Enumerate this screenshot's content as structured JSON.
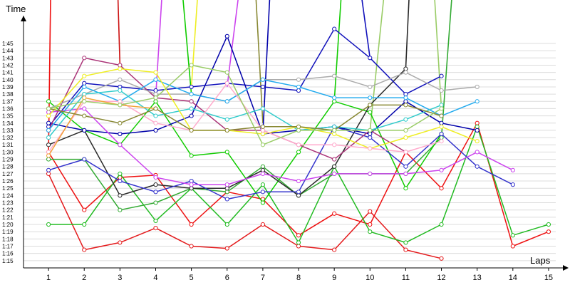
{
  "chart_data": {
    "type": "line",
    "xlabel": "Laps",
    "ylabel": "Time",
    "x_ticks": [
      "1",
      "2",
      "3",
      "4",
      "5",
      "6",
      "7",
      "8",
      "9",
      "10",
      "11",
      "12",
      "13",
      "14",
      "15"
    ],
    "y_ticks": [
      "1:15",
      "1:16",
      "1:17",
      "1:18",
      "1:19",
      "1:20",
      "1:21",
      "1:22",
      "1:23",
      "1:24",
      "1:25",
      "1:26",
      "1:27",
      "1:28",
      "1:29",
      "1:30",
      "1:31",
      "1:32",
      "1:33",
      "1:34",
      "1:35",
      "1:36",
      "1:37",
      "1:38",
      "1:39",
      "1:40",
      "1:41",
      "1:42",
      "1:43",
      "1:44",
      "1:45"
    ],
    "ylim": [
      "1:14",
      "1:51"
    ],
    "xlim": [
      0.3,
      15.4
    ],
    "grid": true,
    "series": [
      {
        "color": "#e41a1c",
        "x": [
          1,
          2,
          3,
          4,
          5,
          6,
          7,
          8,
          9,
          10,
          11,
          12
        ],
        "y": [
          "1:27",
          "1:16.5",
          "1:17.5",
          "1:19.5",
          "1:17",
          "1:16.7",
          "1:20",
          "1:17",
          "1:16.5",
          "1:21.8",
          "1:16.5",
          "1:15.3"
        ]
      },
      {
        "color": "#ee1111",
        "x": [
          1,
          2,
          3,
          4,
          5,
          6,
          7,
          8,
          9,
          10,
          11,
          12,
          13,
          14,
          15
        ],
        "y": [
          "1:30",
          "1:22",
          "1:26.5",
          "1:26.8",
          "1:20",
          "1:24.5",
          "1:23.5",
          "1:18.5",
          "1:21.5",
          "1:20",
          "1:30",
          "1:25",
          "1:34",
          "1:17",
          "1:19"
        ]
      },
      {
        "color": "#22bb22",
        "x": [
          1,
          2,
          3,
          4,
          5,
          6,
          7,
          8,
          9,
          10,
          11,
          12,
          13,
          14,
          15
        ],
        "y": [
          "1:20",
          "1:20",
          "1:27",
          "1:20.5",
          "1:25",
          "1:20",
          "1:25.5",
          "1:17.5",
          "1:28",
          "1:19",
          "1:17.5",
          "1:20",
          "1:33.5",
          "1:18.5",
          "1:20"
        ]
      },
      {
        "color": "#33aa33",
        "x": [
          1,
          2,
          3,
          4,
          5,
          6,
          7,
          8,
          9,
          10,
          11,
          12
        ],
        "y": [
          "1:29",
          "1:29",
          "1:22",
          "1:23",
          "1:25",
          "1:24.5",
          "1:28",
          "1:24",
          "1:27",
          "1:27",
          "1:27",
          "1:32"
        ]
      },
      {
        "color": "#11cc00",
        "x": [
          1,
          2,
          3,
          4,
          5,
          6,
          7,
          8,
          9,
          10,
          11,
          12
        ],
        "y": [
          "1:37",
          "1:33",
          "1:31",
          "1:37",
          "1:29.5",
          "1:30",
          "1:23",
          "1:30",
          "1:37",
          "1:35.5",
          "1:25",
          "1:32.5"
        ]
      },
      {
        "color": "#2a2a2a",
        "x": [
          1,
          2,
          3,
          4,
          5,
          6,
          7,
          8,
          9,
          10,
          11
        ],
        "y": [
          "1:31",
          "1:33",
          "1:24",
          "1:25.5",
          "1:25",
          "1:25",
          "1:27.5",
          "1:24",
          "1:28",
          "1:36.5",
          "1:41.5"
        ]
      },
      {
        "color": "#3333cc",
        "x": [
          1,
          2,
          3,
          4,
          5,
          6,
          7,
          8,
          9,
          10,
          11,
          12,
          13,
          14
        ],
        "y": [
          "1:27.5",
          "1:29",
          "1:26",
          "1:24.5",
          "1:26",
          "1:23.5",
          "1:24.5",
          "1:24.5",
          "1:33.5",
          "1:32",
          "1:28",
          "1:32.5",
          "1:28",
          "1:25.5"
        ]
      },
      {
        "color": "#1111bb",
        "x": [
          1,
          2,
          3,
          4,
          5,
          6,
          7,
          8,
          9,
          10,
          11,
          12
        ],
        "y": [
          "1:33.5",
          "1:39.5",
          "1:39",
          "1:38.5",
          "1:39",
          "1:39.5",
          "1:39",
          "1:38.5",
          "1:47",
          "1:43",
          "1:38",
          "1:40.5"
        ]
      },
      {
        "color": "#0000aa",
        "x": [
          1,
          2,
          3,
          4,
          5,
          6,
          7,
          8,
          9,
          10,
          11,
          12,
          13
        ],
        "y": [
          "1:34",
          "1:33",
          "1:32.5",
          "1:33",
          "1:35",
          "1:46",
          "1:32.5",
          "1:33",
          "1:33.5",
          "1:32.5",
          "1:37",
          "1:34",
          "1:33"
        ]
      },
      {
        "color": "#cc44ee",
        "x": [
          1,
          2,
          3,
          4,
          5,
          6,
          7,
          8,
          9,
          10,
          11,
          12,
          13,
          14
        ],
        "y": [
          "1:35.5",
          "1:36",
          "1:31",
          "1:26.5",
          "1:25.5",
          "1:25.5",
          "1:27",
          "1:26",
          "1:27",
          "1:27",
          "1:27",
          "1:27.5",
          "1:30",
          "1:27.5"
        ]
      },
      {
        "color": "#aa3377",
        "x": [
          1,
          2,
          3,
          4,
          5,
          6,
          7,
          8,
          9,
          10,
          11
        ],
        "y": [
          "1:33",
          "1:43",
          "1:42",
          "1:37.5",
          "1:37",
          "1:33",
          "1:33",
          "1:31",
          "1:29",
          "1:33",
          "1:30"
        ]
      },
      {
        "color": "#aaaaaa",
        "x": [
          1,
          2,
          3,
          4,
          5,
          6,
          7,
          8,
          9,
          10,
          11,
          12,
          13
        ],
        "y": [
          "1:36",
          "1:38",
          "1:40",
          "1:38",
          "1:38",
          "1:37",
          "1:40",
          "1:40",
          "1:40.5",
          "1:39",
          "1:41",
          "1:38.5",
          "1:39"
        ]
      },
      {
        "color": "#22aaee",
        "x": [
          1,
          2,
          3,
          4,
          5,
          6,
          7,
          8,
          9,
          10,
          11,
          12,
          13
        ],
        "y": [
          "1:33",
          "1:39",
          "1:37",
          "1:40",
          "1:38",
          "1:37",
          "1:40",
          "1:39",
          "1:37.5",
          "1:37.5",
          "1:37.5",
          "1:35",
          "1:37"
        ]
      },
      {
        "color": "#33cccc",
        "x": [
          1,
          2,
          3,
          4,
          5,
          6,
          7,
          8,
          9,
          10,
          11,
          12
        ],
        "y": [
          "1:32",
          "1:38",
          "1:38.5",
          "1:35",
          "1:36",
          "1:34.5",
          "1:36",
          "1:33",
          "1:33.5",
          "1:33",
          "1:34.5",
          "1:36.5"
        ]
      },
      {
        "color": "#eeee22",
        "x": [
          1,
          2,
          3,
          4,
          5,
          6,
          7,
          8,
          9,
          10,
          11,
          12,
          13
        ],
        "y": [
          "1:35",
          "1:40.5",
          "1:41.5",
          "1:41",
          "1:33",
          "1:33",
          "1:32.5",
          "1:33.5",
          "1:32.5",
          "1:30.5",
          "1:32",
          "1:33.5",
          "1:31.5"
        ]
      },
      {
        "color": "#ffaacc",
        "x": [
          1,
          2,
          3,
          4,
          5,
          6,
          7,
          8,
          9,
          10,
          11,
          12
        ],
        "y": [
          "1:30",
          "1:37",
          "1:37",
          "1:34",
          "1:33",
          "1:39.5",
          "1:33",
          "1:31",
          "1:31",
          "1:30.5",
          "1:30",
          "1:31.5"
        ]
      },
      {
        "color": "#f2a43a",
        "x": [
          1,
          2,
          3,
          4
        ],
        "y": [
          "1:29.5",
          "1:37.5",
          "1:36.5",
          "1:36"
        ]
      },
      {
        "color": "#888833",
        "x": [
          1,
          2,
          3,
          4,
          5,
          6,
          7,
          8,
          9,
          10,
          11,
          12
        ],
        "y": [
          "1:36",
          "1:35",
          "1:34",
          "1:36",
          "1:33",
          "1:33",
          "1:33.5",
          "1:33.5",
          "1:33",
          "1:36.5",
          "1:36.5",
          "1:35"
        ]
      },
      {
        "color": "#99cc66",
        "x": [
          1,
          2,
          3,
          4,
          5,
          6,
          7,
          8,
          9,
          10,
          11,
          12
        ],
        "y": [
          "1:36",
          "1:37",
          "1:36.5",
          "1:37.5",
          "1:42",
          "1:41",
          "1:31",
          "1:33",
          "1:33",
          "1:33",
          "1:33",
          "1:36"
        ]
      }
    ],
    "offscreen_spikes": [
      {
        "color": "#ee1111",
        "from": [
          "1",
          "1:30"
        ],
        "to_x": 1.06
      },
      {
        "color": "#cc1111",
        "from": [
          "3",
          "1:42"
        ],
        "to_x": 2.94
      },
      {
        "color": "#cc44ee",
        "from": [
          "4",
          "1:37.5"
        ],
        "to_x": 4.18
      },
      {
        "color": "#11cc00",
        "from": [
          "5",
          "1:38"
        ],
        "to_x": 4.75
      },
      {
        "color": "#eeee22",
        "from": [
          "5",
          "1:39"
        ],
        "to_x": 5.18
      },
      {
        "color": "#cc44ee",
        "from": [
          "6",
          "1:39"
        ],
        "to_x": 6.33
      },
      {
        "color": "#888833",
        "from": [
          "7",
          "1:34"
        ],
        "to_x": 6.8
      },
      {
        "color": "#0000aa",
        "from": [
          "7",
          "1:32.5"
        ],
        "to_x": 7.2
      },
      {
        "color": "#11cc00",
        "from": [
          "9",
          "1:37"
        ],
        "to_x": 9.2
      },
      {
        "color": "#1111bb",
        "from": [
          "10",
          "1:43"
        ],
        "to_x": 9.75
      },
      {
        "color": "#99cc66",
        "from": [
          "10",
          "1:33"
        ],
        "to_x": 10.4
      },
      {
        "color": "#2a2a2a",
        "from": [
          "11",
          "1:41.5"
        ],
        "to_x": 11.1
      },
      {
        "color": "#99cc66",
        "from": [
          "12",
          "1:36"
        ],
        "to_x": 11.8
      },
      {
        "color": "#33aa33",
        "from": [
          "12",
          "1:32"
        ],
        "to_x": 12.3
      }
    ]
  }
}
